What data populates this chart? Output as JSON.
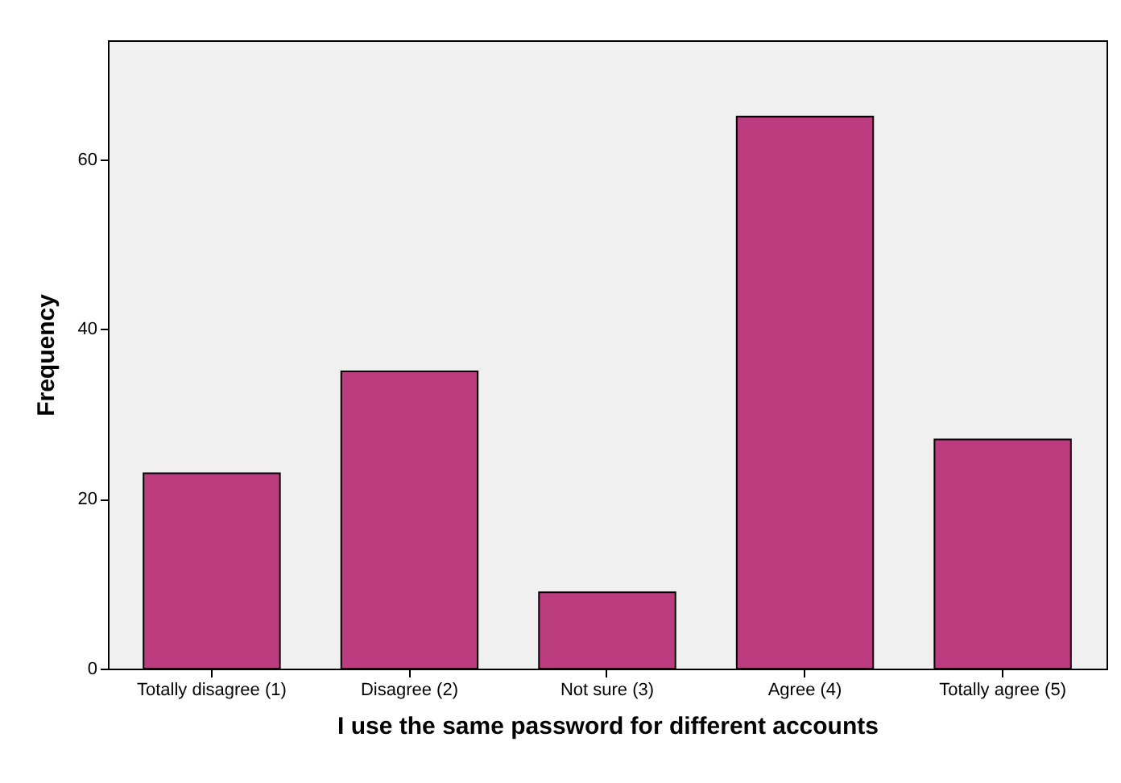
{
  "chart_data": {
    "type": "bar",
    "xlabel": "I use the same password for different accounts",
    "ylabel": "Frequency",
    "categories": [
      "Totally disagree (1)",
      "Disagree (2)",
      "Not sure (3)",
      "Agree (4)",
      "Totally agree (5)"
    ],
    "values": [
      23,
      35,
      9,
      65,
      27
    ],
    "color": "#bb3d7f",
    "ylim": [
      0,
      74
    ],
    "yticks": [
      0,
      20,
      40,
      60
    ],
    "grid": false
  }
}
